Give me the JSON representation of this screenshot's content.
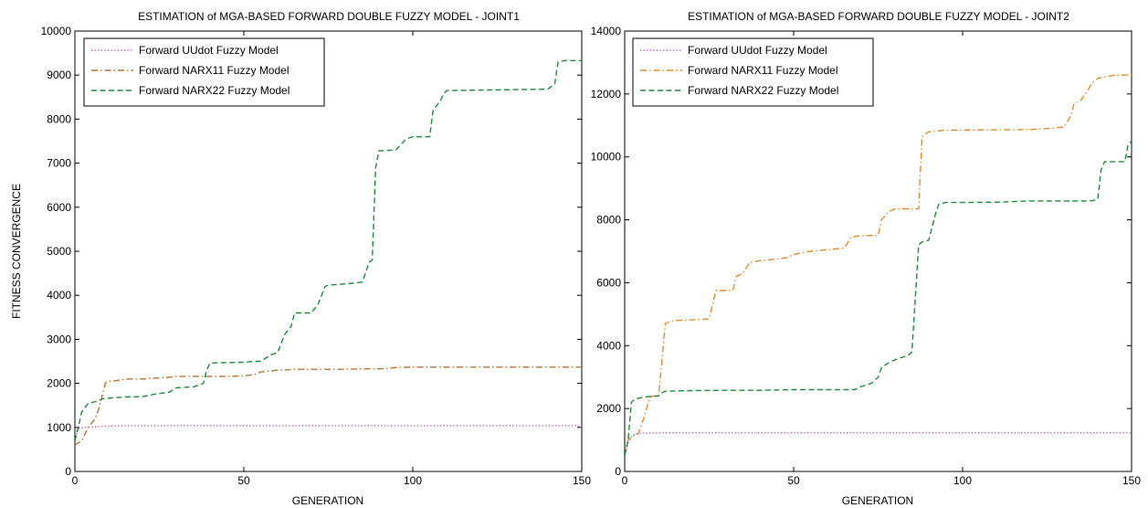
{
  "chart_data": [
    {
      "type": "line",
      "title": "ESTIMATION  of MGA-BASED  FORWARD DOUBLE  FUZZY MODEL - JOINT1",
      "xlabel": "GENERATION",
      "ylabel": "FITNESS CONVERGENCE",
      "xlim": [
        0,
        150
      ],
      "ylim": [
        0,
        10000
      ],
      "xticks": [
        0,
        50,
        100,
        150
      ],
      "yticks": [
        0,
        1000,
        2000,
        3000,
        4000,
        5000,
        6000,
        7000,
        8000,
        9000,
        10000
      ],
      "legend_position": "top-left",
      "grid": false,
      "series": [
        {
          "name": "Forward UUdot Fuzzy Model",
          "color": "#c04cc0",
          "dash": "dotted",
          "x": [
            0,
            1,
            3,
            5,
            10,
            15,
            30,
            60,
            100,
            149,
            150
          ],
          "y": [
            700,
            980,
            1000,
            1010,
            1030,
            1040,
            1040,
            1040,
            1040,
            1040,
            990
          ]
        },
        {
          "name": "Forward NARX11 Fuzzy Model",
          "color": "#b87333",
          "dash": "dashdot",
          "x": [
            0,
            2,
            4,
            6,
            7,
            8,
            9,
            10,
            12,
            14,
            16,
            20,
            24,
            28,
            30,
            35,
            40,
            45,
            50,
            53,
            55,
            58,
            60,
            63,
            65,
            70,
            75,
            80,
            85,
            90,
            93,
            95,
            100,
            110,
            120,
            130,
            140,
            150
          ],
          "y": [
            600,
            700,
            1000,
            1200,
            1400,
            1700,
            2000,
            2050,
            2060,
            2080,
            2100,
            2100,
            2120,
            2140,
            2160,
            2160,
            2160,
            2160,
            2170,
            2200,
            2260,
            2280,
            2300,
            2310,
            2320,
            2320,
            2320,
            2320,
            2330,
            2330,
            2340,
            2360,
            2370,
            2370,
            2370,
            2370,
            2370,
            2370
          ]
        },
        {
          "name": "Forward NARX22 Fuzzy Model",
          "color": "#1e8a3a",
          "dash": "dashed",
          "x": [
            0,
            1,
            2,
            4,
            7,
            8,
            11,
            15,
            20,
            24,
            28,
            30,
            35,
            38,
            39,
            40,
            45,
            50,
            53,
            55,
            58,
            60,
            61,
            62,
            63,
            64,
            65,
            70,
            72,
            74,
            75,
            80,
            83,
            85,
            86,
            87,
            88,
            89,
            90,
            95,
            98,
            100,
            105,
            106,
            108,
            109,
            110,
            120,
            130,
            140,
            142,
            143,
            145,
            150
          ],
          "y": [
            700,
            1000,
            1350,
            1550,
            1600,
            1650,
            1670,
            1690,
            1700,
            1760,
            1800,
            1900,
            1920,
            2000,
            2300,
            2460,
            2470,
            2480,
            2500,
            2500,
            2650,
            2700,
            2900,
            3100,
            3200,
            3300,
            3600,
            3600,
            3800,
            4200,
            4230,
            4260,
            4280,
            4300,
            4500,
            4750,
            4800,
            6900,
            7280,
            7300,
            7550,
            7600,
            7600,
            8200,
            8400,
            8550,
            8650,
            8660,
            8670,
            8680,
            8800,
            9300,
            9330,
            9330
          ]
        }
      ]
    },
    {
      "type": "line",
      "title": "ESTIMATION  of MGA-BASED  FORWARD DOUBLE  FUZZY MODEL - JOINT2",
      "xlabel": "GENERATION",
      "ylabel": "",
      "xlim": [
        0,
        150
      ],
      "ylim": [
        0,
        14000
      ],
      "xticks": [
        0,
        50,
        100,
        150
      ],
      "yticks": [
        0,
        2000,
        4000,
        6000,
        8000,
        10000,
        12000,
        14000
      ],
      "legend_position": "top-left",
      "grid": false,
      "series": [
        {
          "name": "Forward UUdot Fuzzy Model",
          "color": "#c04cc0",
          "dash": "dotted",
          "x": [
            0,
            1,
            2,
            3,
            5,
            10,
            30,
            60,
            100,
            150
          ],
          "y": [
            500,
            900,
            1100,
            1200,
            1220,
            1230,
            1230,
            1230,
            1230,
            1230
          ]
        },
        {
          "name": "Forward NARX11 Fuzzy Model",
          "color": "#e58a2e",
          "dash": "dashdot",
          "x": [
            0,
            1,
            2,
            4,
            5,
            6,
            7,
            8,
            10,
            11,
            12,
            13,
            15,
            20,
            25,
            26,
            27,
            30,
            32,
            33,
            34,
            35,
            37,
            40,
            45,
            48,
            50,
            55,
            60,
            65,
            67,
            70,
            75,
            76,
            78,
            80,
            85,
            87,
            88,
            90,
            95,
            100,
            110,
            120,
            125,
            130,
            132,
            133,
            135,
            137,
            138,
            140,
            145,
            150
          ],
          "y": [
            500,
            1000,
            1100,
            1200,
            1500,
            1800,
            2200,
            2400,
            2400,
            3500,
            4700,
            4750,
            4800,
            4820,
            4850,
            5300,
            5750,
            5750,
            5760,
            6200,
            6250,
            6300,
            6650,
            6700,
            6750,
            6800,
            6900,
            7000,
            7050,
            7100,
            7450,
            7500,
            7500,
            8000,
            8250,
            8350,
            8350,
            8350,
            10650,
            10800,
            10850,
            10850,
            10860,
            10870,
            10900,
            10950,
            11300,
            11700,
            11800,
            12100,
            12300,
            12500,
            12600,
            12600
          ]
        },
        {
          "name": "Forward NARX22 Fuzzy Model",
          "color": "#1e8a3a",
          "dash": "dashed",
          "x": [
            0,
            1,
            2,
            3,
            5,
            7,
            10,
            11,
            12,
            15,
            20,
            30,
            40,
            50,
            60,
            68,
            70,
            73,
            75,
            76,
            78,
            80,
            84,
            85,
            86,
            87,
            88,
            90,
            92,
            93,
            95,
            100,
            110,
            120,
            130,
            138,
            140,
            141,
            142,
            145,
            148,
            149,
            150
          ],
          "y": [
            500,
            1000,
            2200,
            2300,
            2350,
            2380,
            2400,
            2500,
            2550,
            2560,
            2570,
            2580,
            2580,
            2600,
            2600,
            2600,
            2700,
            2800,
            3000,
            3300,
            3450,
            3550,
            3700,
            3800,
            5500,
            7200,
            7300,
            7350,
            8200,
            8500,
            8550,
            8550,
            8560,
            8600,
            8600,
            8600,
            8650,
            9600,
            9850,
            9850,
            9850,
            10400,
            10500
          ]
        }
      ]
    }
  ]
}
